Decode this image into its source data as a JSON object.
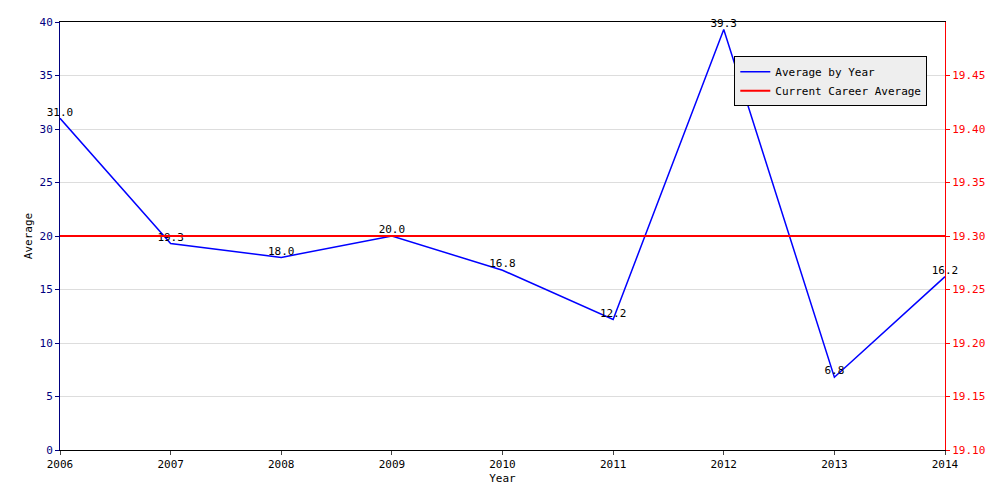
{
  "chart_data": {
    "type": "line",
    "x_label": "Year",
    "y_label": "Average",
    "x": [
      2006,
      2007,
      2008,
      2009,
      2010,
      2011,
      2012,
      2013,
      2014
    ],
    "series": [
      {
        "name": "Average by Year",
        "color": "#0000ff",
        "values": [
          31.0,
          19.3,
          18.0,
          20.0,
          16.8,
          12.2,
          39.3,
          6.8,
          16.2
        ],
        "value_labels": [
          "31.0",
          "19.3",
          "18.0",
          "20.0",
          "16.8",
          "12.2",
          "39.3",
          "6.8",
          "16.2"
        ],
        "data_labels": true
      },
      {
        "name": "Current Career Average",
        "color": "#ff0000",
        "axis": "y2",
        "values": [
          19.3,
          19.3,
          19.3,
          19.3,
          19.3,
          19.3,
          19.3,
          19.3,
          19.3
        ]
      }
    ],
    "xlim": [
      2006,
      2014
    ],
    "xticks": [
      2006,
      2007,
      2008,
      2009,
      2010,
      2011,
      2012,
      2013,
      2014
    ],
    "ylim": [
      0,
      40
    ],
    "yticks": [
      0,
      5,
      10,
      15,
      20,
      25,
      30,
      35,
      40
    ],
    "y2lim": [
      19.1,
      19.5
    ],
    "y2ticks": [
      {
        "value": 19.1,
        "label": "19.10"
      },
      {
        "value": 19.15,
        "label": "19.15"
      },
      {
        "value": 19.2,
        "label": "19.20"
      },
      {
        "value": 19.25,
        "label": "19.25"
      },
      {
        "value": 19.3,
        "label": "19.30"
      },
      {
        "value": 19.35,
        "label": "19.35"
      },
      {
        "value": 19.4,
        "label": "19.40"
      },
      {
        "value": 19.45,
        "label": "19.45"
      }
    ],
    "grid": true,
    "legend": "upper right"
  }
}
